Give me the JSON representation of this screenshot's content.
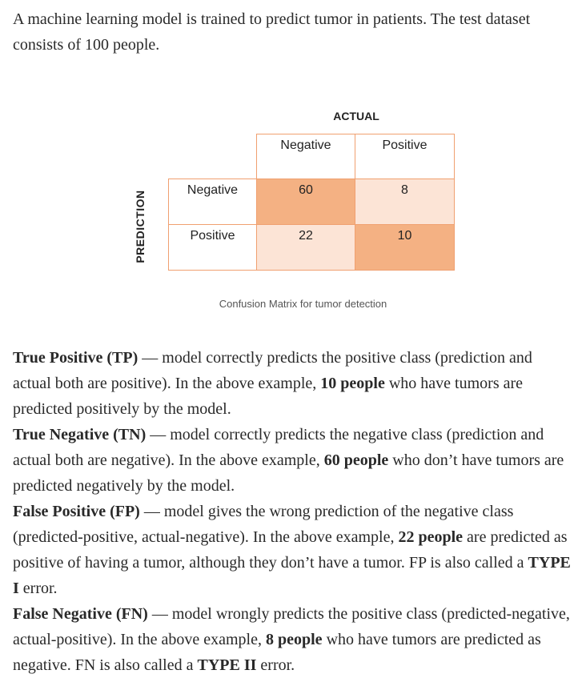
{
  "intro": "A machine learning model is trained to predict tumor in patients. The test dataset consists of 100 people.",
  "matrix": {
    "actual_label": "ACTUAL",
    "prediction_label": "PREDICTION",
    "col_headers": [
      "Negative",
      "Positive"
    ],
    "row_headers": [
      "Negative",
      "Positive"
    ],
    "cells": [
      [
        "60",
        "8"
      ],
      [
        "22",
        "10"
      ]
    ],
    "dark_color": "#f4b183",
    "light_color": "#fce4d6",
    "border_color": "#f0a070",
    "caption": "Confusion Matrix for tumor detection"
  },
  "definitions": [
    {
      "term": "True Positive (TP)",
      "text1": " — model correctly predicts the positive class (prediction and actual both are positive). In the above example, ",
      "bold": "10 people",
      "text2": " who have tumors are predicted positively by the model.",
      "bold2": "",
      "text3": ""
    },
    {
      "term": "True Negative (TN)",
      "text1": " — model correctly predicts the negative class (prediction and actual both are negative). In the above example, ",
      "bold": "60 people",
      "text2": " who don’t have tumors are predicted negatively by the model.",
      "bold2": "",
      "text3": ""
    },
    {
      "term": "False Positive (FP)",
      "text1": " — model gives the wrong prediction of the negative class (predicted-positive, actual-negative). In the above example, ",
      "bold": "22 people",
      "text2": " are predicted as positive of having a tumor, although they don’t have a tumor. FP is also called a ",
      "bold2": "TYPE I",
      "text3": " error."
    },
    {
      "term": "False Negative (FN)",
      "text1": " — model wrongly predicts the positive class (predicted-negative, actual-positive). In the above example, ",
      "bold": "8 people",
      "text2": " who have tumors are predicted as negative. FN is also called a ",
      "bold2": "TYPE II",
      "text3": " error."
    }
  ]
}
